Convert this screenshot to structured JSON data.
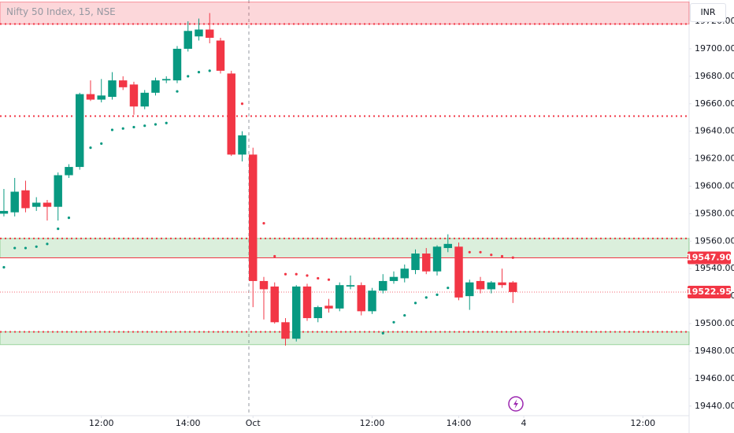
{
  "header": {
    "symbol": "Nifty 50 Index, 15, NSE",
    "currency": "INR"
  },
  "chart_data": {
    "type": "candlestick",
    "xlim": [
      -0.36,
      63.27
    ],
    "ylim": [
      19433,
      19735.5
    ],
    "yticks": [
      {
        "value": 19440,
        "label": "19440.00"
      },
      {
        "value": 19460,
        "label": "19460.00"
      },
      {
        "value": 19480,
        "label": "19480.00"
      },
      {
        "value": 19500,
        "label": "19500.00"
      },
      {
        "value": 19520,
        "label": "19520.00"
      },
      {
        "value": 19540,
        "label": "19540.00"
      },
      {
        "value": 19560,
        "label": "19560.00"
      },
      {
        "value": 19580,
        "label": "19580.00"
      },
      {
        "value": 19600,
        "label": "19600.00"
      },
      {
        "value": 19620,
        "label": "19620.00"
      },
      {
        "value": 19640,
        "label": "19640.00"
      },
      {
        "value": 19660,
        "label": "19660.00"
      },
      {
        "value": 19680,
        "label": "19680.00"
      },
      {
        "value": 19700,
        "label": "19700.00"
      },
      {
        "value": 19720,
        "label": "19720.00"
      }
    ],
    "xticks": [
      {
        "value": 9,
        "label": "12:00"
      },
      {
        "value": 17,
        "label": "14:00"
      },
      {
        "value": 23,
        "label": "Oct"
      },
      {
        "value": 34,
        "label": "12:00"
      },
      {
        "value": 42,
        "label": "14:00"
      },
      {
        "value": 48,
        "label": "4"
      },
      {
        "value": 59,
        "label": "12:00"
      }
    ],
    "up_color": "#089981",
    "down_color": "#f23645",
    "open": [
      19580,
      19581,
      19597,
      19585,
      19588,
      19585,
      19608,
      19614,
      19667,
      19663,
      19665,
      19677,
      19674,
      19658,
      19668,
      19677,
      19677,
      19700,
      19709,
      19714,
      19706,
      19682,
      19623,
      19623,
      19531,
      19527,
      19501,
      19489,
      19527,
      19504,
      19513,
      19511,
      19527,
      19528,
      19509,
      19524,
      19531,
      19533,
      19539,
      19551,
      19538,
      19555,
      19556,
      19520,
      19531,
      19525,
      19530,
      19530
    ],
    "high": [
      19598,
      19606,
      19604,
      19592,
      19590,
      19610,
      19616,
      19668,
      19677,
      19678,
      19683,
      19680,
      19676,
      19670,
      19679,
      19680,
      19702,
      19720,
      19722,
      19726,
      19708,
      19684,
      19640,
      19628,
      19534,
      19530,
      19504,
      19528,
      19529,
      19513,
      19518,
      19530,
      19535,
      19530,
      19526,
      19536,
      19538,
      19543,
      19554,
      19555,
      19557,
      19565,
      19559,
      19532,
      19534,
      19531,
      19540,
      19531
    ],
    "low": [
      19578,
      19578,
      19581,
      19582,
      19575,
      19575,
      19606,
      19612,
      19662,
      19661,
      19663,
      19670,
      19652,
      19656,
      19666,
      19675,
      19675,
      19698,
      19706,
      19704,
      19682,
      19622,
      19618,
      19512,
      19503,
      19500,
      19484,
      19487,
      19502,
      19501,
      19508,
      19509,
      19525,
      19506,
      19507,
      19522,
      19529,
      19530,
      19536,
      19536,
      19535,
      19552,
      19517,
      19510,
      19522,
      19522,
      19526,
      19515
    ],
    "close": [
      19582,
      19596,
      19584,
      19588,
      19585,
      19608,
      19614,
      19667,
      19663,
      19666,
      19677,
      19672,
      19658,
      19668,
      19677,
      19678,
      19700,
      19713,
      19714,
      19708,
      19684,
      19623,
      19637,
      19531,
      19525,
      19501,
      19489,
      19527,
      19504,
      19512,
      19511,
      19528,
      19528,
      19509,
      19524,
      19531,
      19534,
      19540,
      19551,
      19538,
      19556,
      19558,
      19519,
      19530,
      19525,
      19530,
      19528,
      19523
    ],
    "sar": [
      19541,
      19555,
      19555,
      19556,
      19558,
      19569,
      19577,
      null,
      19628,
      19631,
      19641,
      19642,
      19643,
      19644,
      19645,
      19646,
      19669,
      19680,
      19683,
      19684,
      null,
      null,
      19660,
      null,
      19573,
      19549,
      19536,
      19536,
      19535,
      19533,
      19532,
      null,
      null,
      null,
      null,
      19493,
      19501,
      19506,
      19515,
      19519,
      19521,
      19526,
      null,
      19552,
      19552,
      19550,
      19549,
      19548
    ],
    "zones": [
      {
        "from": 19718,
        "to": 19734,
        "color": "#f23645"
      },
      {
        "from": 19547.9,
        "to": 19562,
        "color": "#4caf50"
      },
      {
        "from": 19484.7,
        "to": 19494,
        "color": "#4caf50"
      }
    ],
    "levels": [
      19718,
      19651,
      19562,
      19494
    ],
    "level_color": "#f23645",
    "price_labels": [
      {
        "value": 19547.9,
        "label": "19547.90"
      },
      {
        "value": 19522.95,
        "label": "19522.95"
      }
    ]
  }
}
